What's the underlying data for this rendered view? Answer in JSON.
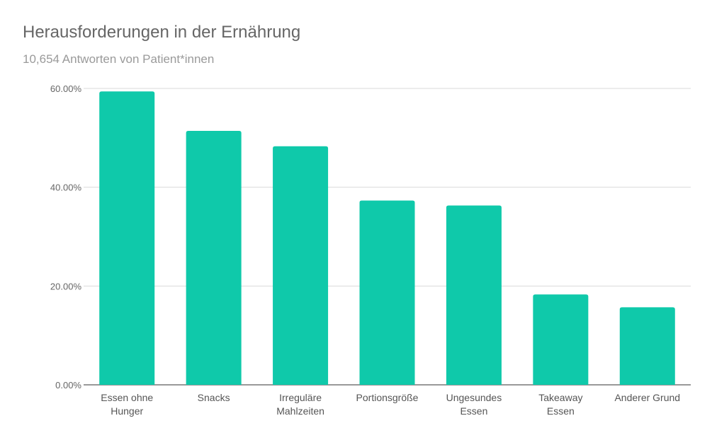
{
  "chart_data": {
    "type": "bar",
    "title": "Herausforderungen in der Ernährung",
    "subtitle": "10,654 Antworten von Patient*innen",
    "categories": [
      [
        "Essen ohne",
        "Hunger"
      ],
      [
        "Snacks"
      ],
      [
        "Irreguläre",
        "Mahlzeiten"
      ],
      [
        "Portionsgröße"
      ],
      [
        "Ungesundes",
        "Essen"
      ],
      [
        "Takeaway",
        "Essen"
      ],
      [
        "Anderer Grund"
      ]
    ],
    "values": [
      59.4,
      51.4,
      48.3,
      37.3,
      36.3,
      18.3,
      15.7
    ],
    "ylim": [
      0,
      60
    ],
    "yticks": [
      0,
      20,
      40,
      60
    ],
    "ytick_labels": [
      "0.00%",
      "20.00%",
      "40.00%",
      "60.00%"
    ],
    "grid": true,
    "xlabel": "",
    "ylabel": "",
    "bar_color": "#0fc9aa",
    "grid_color": "#d9d9d9"
  }
}
